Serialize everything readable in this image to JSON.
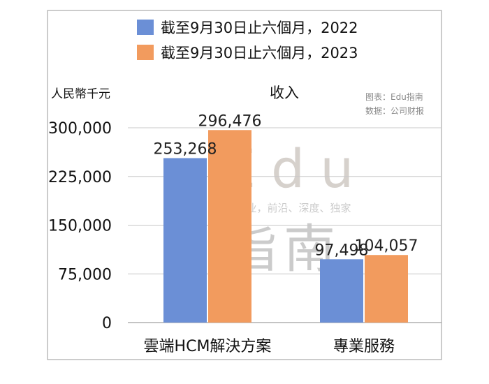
{
  "chart_data": {
    "type": "bar",
    "title": "收入",
    "ylabel": "人民幣千元",
    "categories": [
      "雲端HCM解決方案",
      "專業服務"
    ],
    "series": [
      {
        "name": "截至9月30日止六個月，2022",
        "values": [
          253268,
          97498
        ],
        "labels": [
          "253,268",
          "97,498"
        ],
        "color": "#6b8fd6"
      },
      {
        "name": "截至9月30日止六個月，2023",
        "values": [
          296476,
          104057
        ],
        "labels": [
          "296,476",
          "104,057"
        ],
        "color": "#f29b5e"
      }
    ],
    "ylim": [
      0,
      300000
    ],
    "yticks": [
      0,
      75000,
      150000,
      225000,
      300000
    ],
    "ytick_labels": [
      "0",
      "75,000",
      "150,000",
      "225,000",
      "300,000"
    ],
    "grid": true,
    "legend": "top",
    "source_notes": [
      "图表：Edu指南",
      "数据：公司财报"
    ],
    "watermark": {
      "brand": "Edu",
      "brand_cn": "指南",
      "tagline": "教育行业，前沿、深度、独家"
    }
  }
}
